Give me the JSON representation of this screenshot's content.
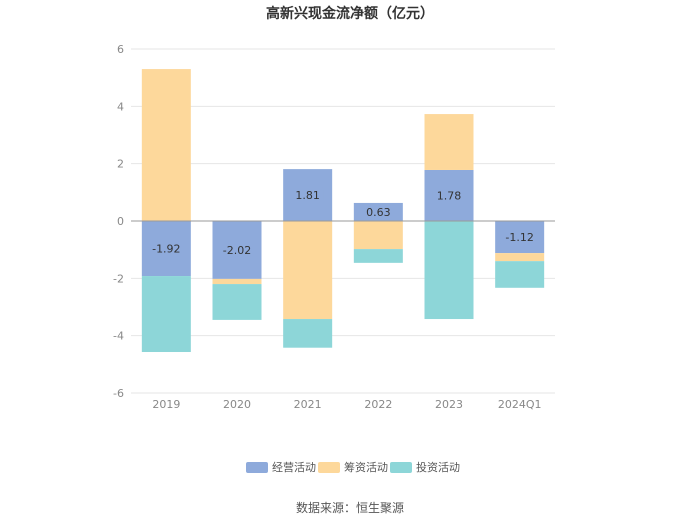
{
  "chart_data": {
    "type": "bar",
    "stacked": true,
    "title": "高新兴现金流净额（亿元）",
    "categories": [
      "2019",
      "2020",
      "2021",
      "2022",
      "2023",
      "2024Q1"
    ],
    "series": [
      {
        "name": "经营活动",
        "color": "#8eaadb",
        "values": [
          -1.92,
          -2.02,
          1.81,
          0.63,
          1.78,
          -1.12
        ],
        "labels": [
          "-1.92",
          "-2.02",
          "1.81",
          "0.63",
          "1.78",
          "-1.12"
        ]
      },
      {
        "name": "筹资活动",
        "color": "#fdd89b",
        "values": [
          5.3,
          -0.18,
          -3.42,
          -0.98,
          1.95,
          -0.28
        ]
      },
      {
        "name": "投资活动",
        "color": "#8dd6d8",
        "values": [
          -2.65,
          -1.25,
          -1.0,
          -0.48,
          -3.42,
          -0.93
        ]
      }
    ],
    "ylim": [
      -6,
      6
    ],
    "yticks": [
      "6",
      "4",
      "2",
      "0",
      "-2",
      "-4",
      "-6"
    ],
    "ytick_values": [
      6,
      4,
      2,
      0,
      -2,
      -4,
      -6
    ],
    "grid": true,
    "legend": "bottom-center"
  },
  "source": "数据来源：恒生聚源"
}
